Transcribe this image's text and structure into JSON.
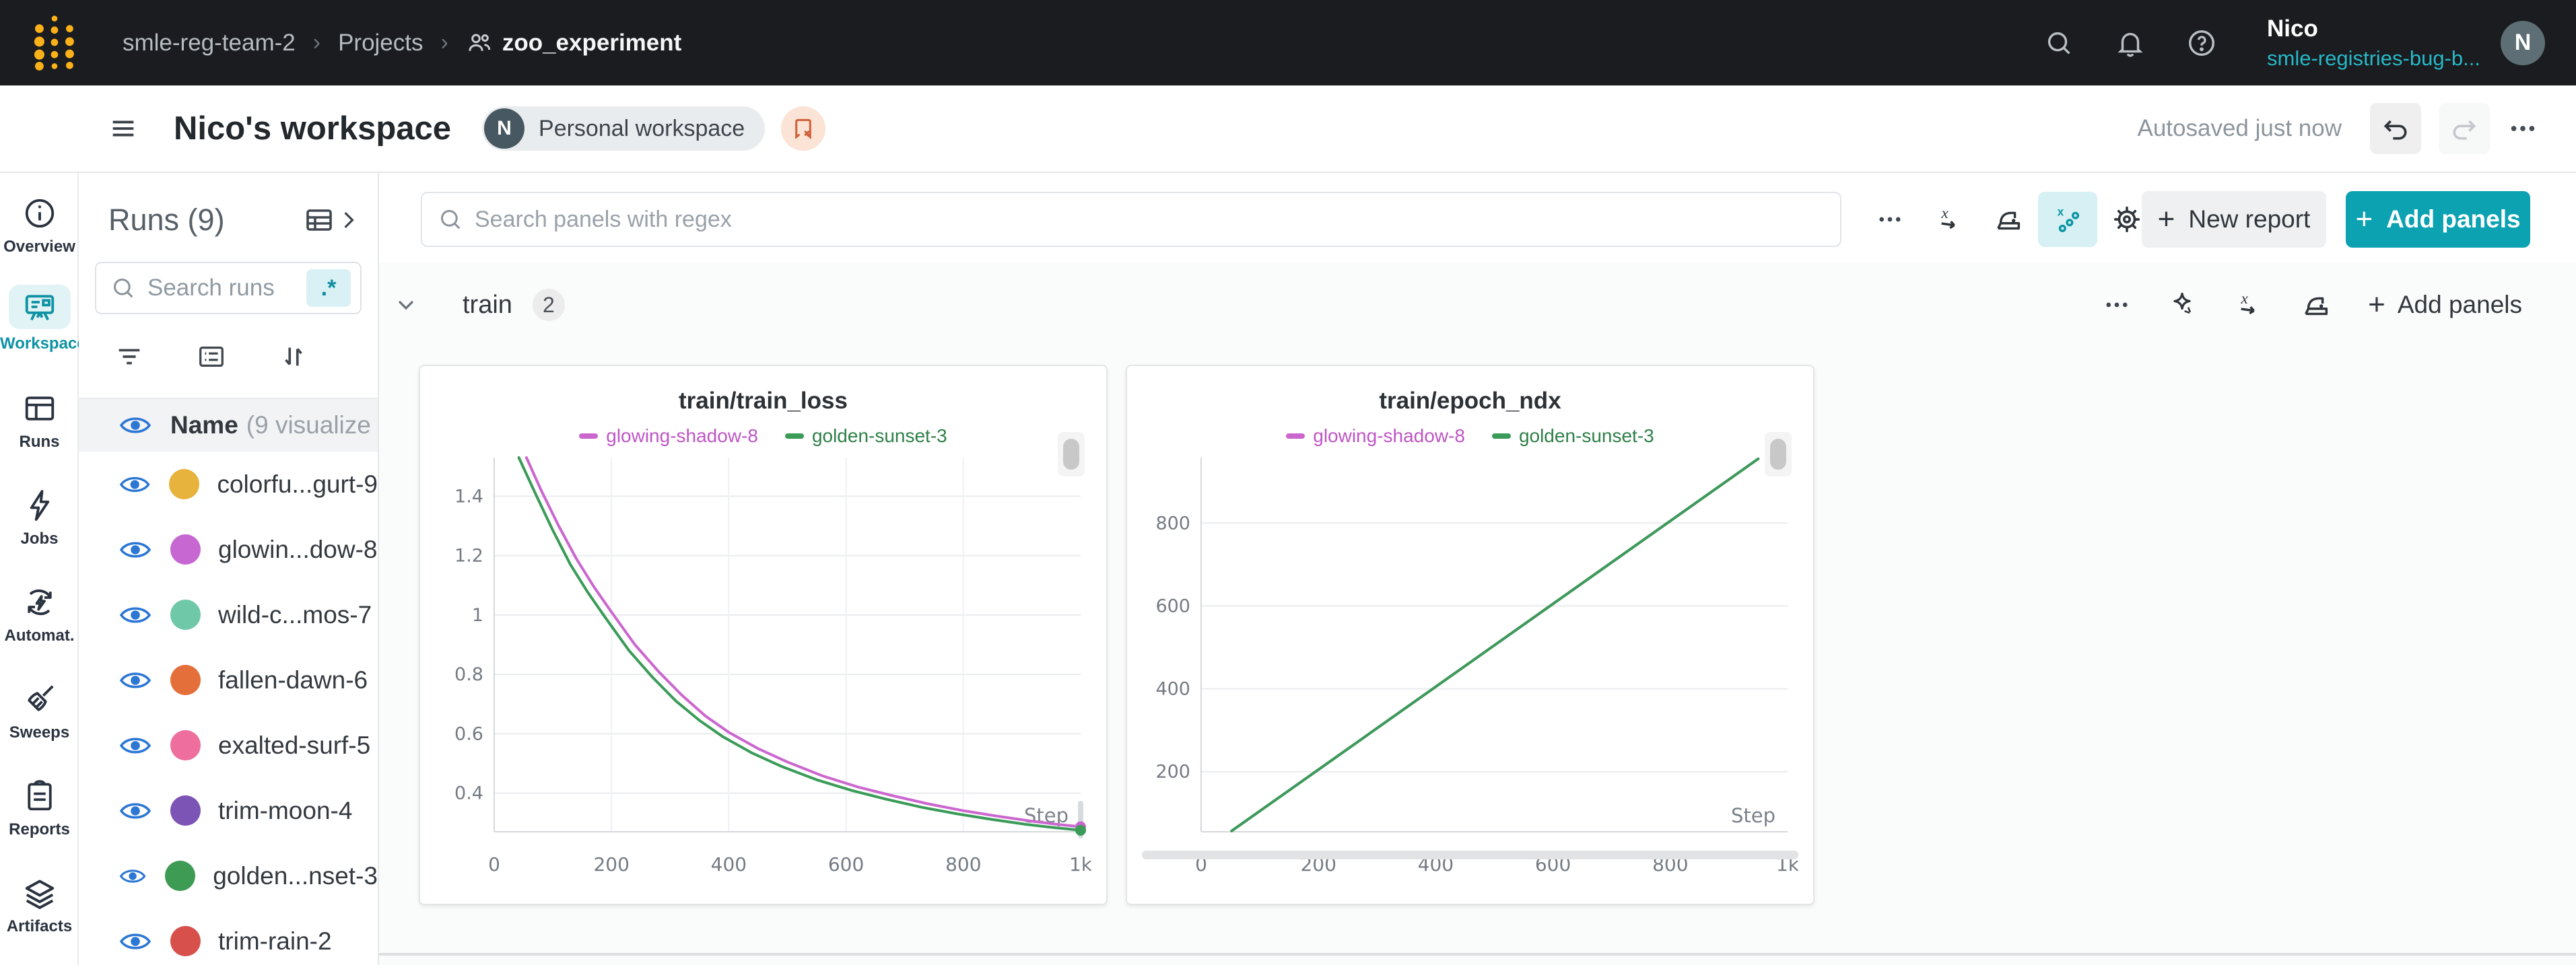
{
  "topbar": {
    "breadcrumb": {
      "team": "smle-reg-team-2",
      "section": "Projects",
      "project": "zoo_experiment",
      "separator": "›"
    },
    "user": {
      "name": "Nico",
      "org": "smle-registries-bug-b...",
      "avatar_initial": "N"
    }
  },
  "workspace_header": {
    "title": "Nico's workspace",
    "badge_initial": "N",
    "badge_label": "Personal workspace",
    "autosave_status": "Autosaved just now"
  },
  "sidebar": {
    "items": [
      {
        "label": "Overview"
      },
      {
        "label": "Workspace"
      },
      {
        "label": "Runs"
      },
      {
        "label": "Jobs"
      },
      {
        "label": "Automat."
      },
      {
        "label": "Sweeps"
      },
      {
        "label": "Reports"
      },
      {
        "label": "Artifacts"
      }
    ]
  },
  "runs_panel": {
    "title": "Runs (9)",
    "search_placeholder": "Search runs",
    "regex_label": ".*",
    "header": {
      "name": "Name",
      "suffix": "(9 visualize"
    },
    "runs": [
      {
        "name": "colorfu...gurt-9",
        "color": "#e7b33d"
      },
      {
        "name": "glowin...dow-8",
        "color": "#c667d2"
      },
      {
        "name": "wild-c...mos-7",
        "color": "#6fc8a7"
      },
      {
        "name": "fallen-dawn-6",
        "color": "#e56f3a"
      },
      {
        "name": "exalted-surf-5",
        "color": "#ee6f9d"
      },
      {
        "name": "trim-moon-4",
        "color": "#7c54b5"
      },
      {
        "name": "golden...nset-3",
        "color": "#3d9b54"
      },
      {
        "name": "trim-rain-2",
        "color": "#d7504b"
      }
    ]
  },
  "panel_controls": {
    "search_placeholder": "Search panels with regex",
    "plus": "+",
    "new_report_label": "New report",
    "add_panels_label": "Add panels"
  },
  "section": {
    "name": "train",
    "count": "2",
    "plus": "+",
    "add_panels_label": "Add panels"
  },
  "chart_data": [
    {
      "type": "line",
      "title": "train/train_loss",
      "xlabel": "Step",
      "xlim": [
        0,
        1000
      ],
      "ylim": [
        0.27,
        1.53
      ],
      "xticks": [
        0,
        200,
        400,
        600,
        800,
        1000
      ],
      "xtick_labels": [
        "0",
        "200",
        "400",
        "600",
        "800",
        "1k"
      ],
      "yticks": [
        0.4,
        0.6,
        0.8,
        1.0,
        1.2,
        1.4
      ],
      "ytick_labels": [
        "0.4",
        "0.6",
        "0.8",
        "1",
        "1.2",
        "1.4"
      ],
      "grid": {
        "h": true,
        "v": true
      },
      "legend_position": "top",
      "end_markers": true,
      "scrollbar": false,
      "series": [
        {
          "name": "glowing-shadow-8",
          "color": "#cb66cf",
          "label_color": "#bf55c6",
          "points": [
            [
              55,
              1.53
            ],
            [
              80,
              1.42
            ],
            [
              110,
              1.3
            ],
            [
              140,
              1.19
            ],
            [
              170,
              1.095
            ],
            [
              200,
              1.01
            ],
            [
              240,
              0.9
            ],
            [
              280,
              0.81
            ],
            [
              320,
              0.73
            ],
            [
              360,
              0.66
            ],
            [
              400,
              0.605
            ],
            [
              450,
              0.55
            ],
            [
              500,
              0.505
            ],
            [
              560,
              0.458
            ],
            [
              620,
              0.421
            ],
            [
              680,
              0.391
            ],
            [
              740,
              0.364
            ],
            [
              800,
              0.341
            ],
            [
              860,
              0.322
            ],
            [
              920,
              0.305
            ],
            [
              960,
              0.295
            ],
            [
              1000,
              0.287
            ]
          ]
        },
        {
          "name": "golden-sunset-3",
          "color": "#3b9b58",
          "label_color": "#2e8048",
          "points": [
            [
              42,
              1.53
            ],
            [
              70,
              1.41
            ],
            [
              100,
              1.285
            ],
            [
              130,
              1.17
            ],
            [
              160,
              1.075
            ],
            [
              190,
              0.99
            ],
            [
              230,
              0.88
            ],
            [
              270,
              0.79
            ],
            [
              310,
              0.71
            ],
            [
              350,
              0.645
            ],
            [
              390,
              0.59
            ],
            [
              440,
              0.535
            ],
            [
              490,
              0.49
            ],
            [
              550,
              0.445
            ],
            [
              610,
              0.409
            ],
            [
              670,
              0.379
            ],
            [
              730,
              0.352
            ],
            [
              790,
              0.33
            ],
            [
              850,
              0.311
            ],
            [
              910,
              0.294
            ],
            [
              950,
              0.285
            ],
            [
              1000,
              0.275
            ]
          ]
        }
      ]
    },
    {
      "type": "line",
      "title": "train/epoch_ndx",
      "xlabel": "Step",
      "xlim": [
        0,
        1000
      ],
      "ylim": [
        55,
        958
      ],
      "xticks": [
        0,
        200,
        400,
        600,
        800,
        1000
      ],
      "xtick_labels": [
        "0",
        "200",
        "400",
        "600",
        "800",
        "1k"
      ],
      "yticks": [
        200,
        400,
        600,
        800
      ],
      "ytick_labels": [
        "200",
        "400",
        "600",
        "800"
      ],
      "grid": {
        "h": true,
        "v": false
      },
      "legend_position": "top",
      "end_markers": false,
      "scrollbar": true,
      "series": [
        {
          "name": "glowing-shadow-8",
          "color": "#cb66cf",
          "label_color": "#bf55c6",
          "points": [
            [
              52,
              57
            ],
            [
              950,
              955
            ]
          ]
        },
        {
          "name": "golden-sunset-3",
          "color": "#3b9b58",
          "label_color": "#2e8048",
          "points": [
            [
              52,
              57
            ],
            [
              950,
              955
            ]
          ]
        }
      ]
    }
  ],
  "colors": {
    "accent_teal": "#0da2b2",
    "eye_blue": "#2c77d4"
  }
}
